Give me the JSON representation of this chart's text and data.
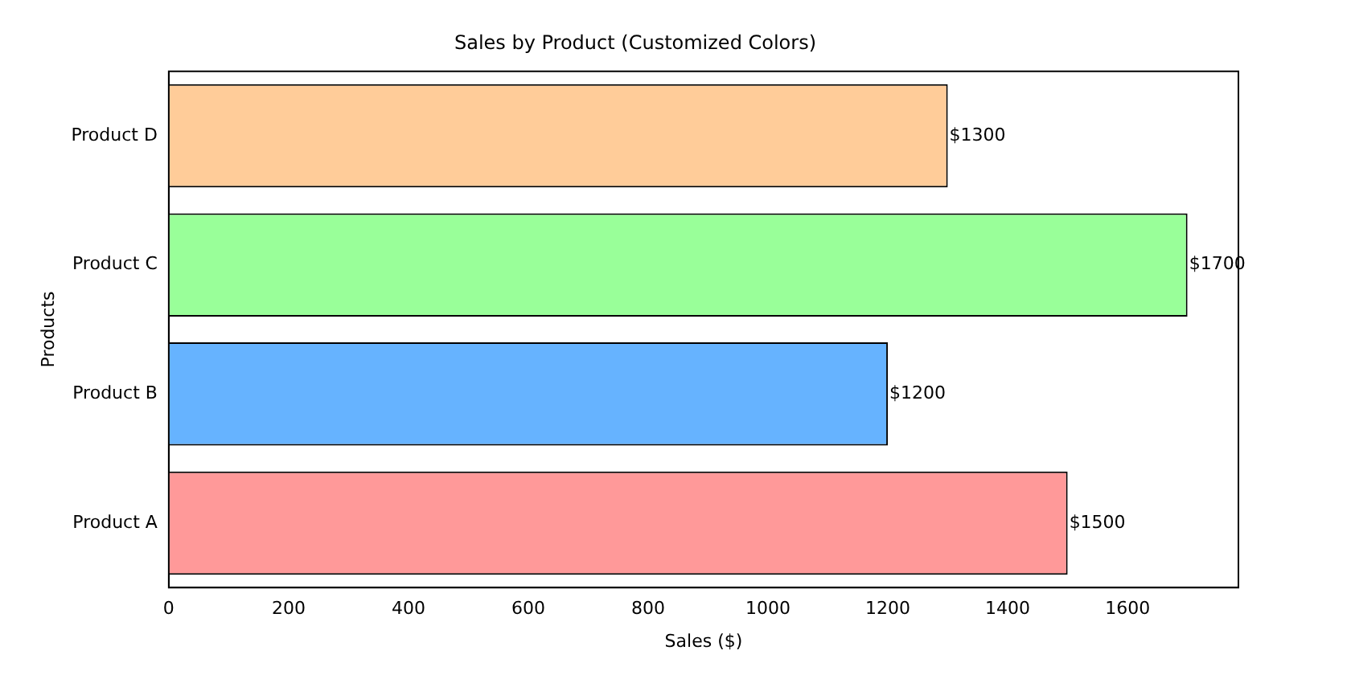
{
  "chart_data": {
    "type": "bar",
    "orientation": "horizontal",
    "title": "Sales by Product (Customized Colors)",
    "xlabel": "Sales ($)",
    "ylabel": "Products",
    "categories": [
      "Product D",
      "Product C",
      "Product B",
      "Product A"
    ],
    "values": [
      1300,
      1700,
      1200,
      1500
    ],
    "colors": [
      "#ffcc99",
      "#99ff99",
      "#66b3ff",
      "#ff9999"
    ],
    "value_labels": [
      "$1300",
      "$1700",
      "$1200",
      "$1500"
    ],
    "xlim": [
      0,
      1785
    ],
    "xticks": [
      0,
      200,
      400,
      600,
      800,
      1000,
      1200,
      1400,
      1600
    ],
    "grid": false,
    "legend": false
  }
}
